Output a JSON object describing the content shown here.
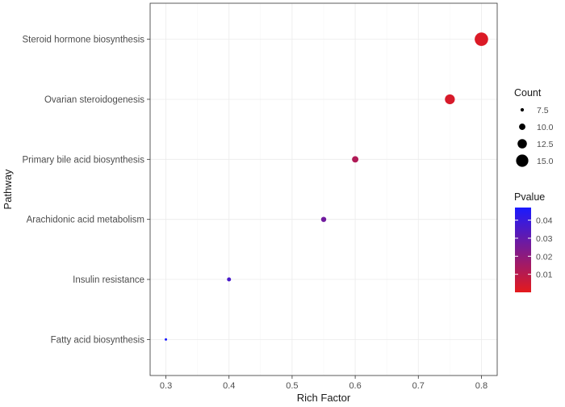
{
  "chart_data": {
    "type": "scatter",
    "xlabel": "Rich Factor",
    "ylabel": "Pathway",
    "xlim": [
      0.275,
      0.825
    ],
    "x_ticks": [
      0.3,
      0.4,
      0.5,
      0.6,
      0.7,
      0.8
    ],
    "x_tick_labels": [
      "0.3",
      "0.4",
      "0.5",
      "0.6",
      "0.7",
      "0.8"
    ],
    "categories": [
      "Fatty acid biosynthesis",
      "Insulin resistance",
      "Arachidonic acid metabolism",
      "Primary bile acid biosynthesis",
      "Ovarian steroidogenesis",
      "Steroid hormone biosynthesis"
    ],
    "points": [
      {
        "pathway": "Fatty acid biosynthesis",
        "rich_factor": 0.3,
        "count": 5,
        "pvalue": 0.047
      },
      {
        "pathway": "Insulin resistance",
        "rich_factor": 0.4,
        "count": 8,
        "pvalue": 0.036
      },
      {
        "pathway": "Arachidonic acid metabolism",
        "rich_factor": 0.55,
        "count": 9,
        "pvalue": 0.027
      },
      {
        "pathway": "Primary bile acid biosynthesis",
        "rich_factor": 0.6,
        "count": 10,
        "pvalue": 0.012
      },
      {
        "pathway": "Ovarian steroidogenesis",
        "rich_factor": 0.75,
        "count": 13,
        "pvalue": 0.003
      },
      {
        "pathway": "Steroid hormone biosynthesis",
        "rich_factor": 0.8,
        "count": 16,
        "pvalue": 0.002
      }
    ],
    "size_legend": {
      "title": "Count",
      "values": [
        7.5,
        10.0,
        12.5,
        15.0
      ],
      "labels": [
        "7.5",
        "10.0",
        "12.5",
        "15.0"
      ]
    },
    "color_legend": {
      "title": "Pvalue",
      "range": [
        0.0,
        0.047
      ],
      "ticks": [
        0.01,
        0.02,
        0.03,
        0.04
      ],
      "tick_labels": [
        "0.01",
        "0.02",
        "0.03",
        "0.04"
      ],
      "low_color": "#e41a1c",
      "high_color": "#1a1aff"
    },
    "grid": true,
    "legend_position": "right"
  }
}
